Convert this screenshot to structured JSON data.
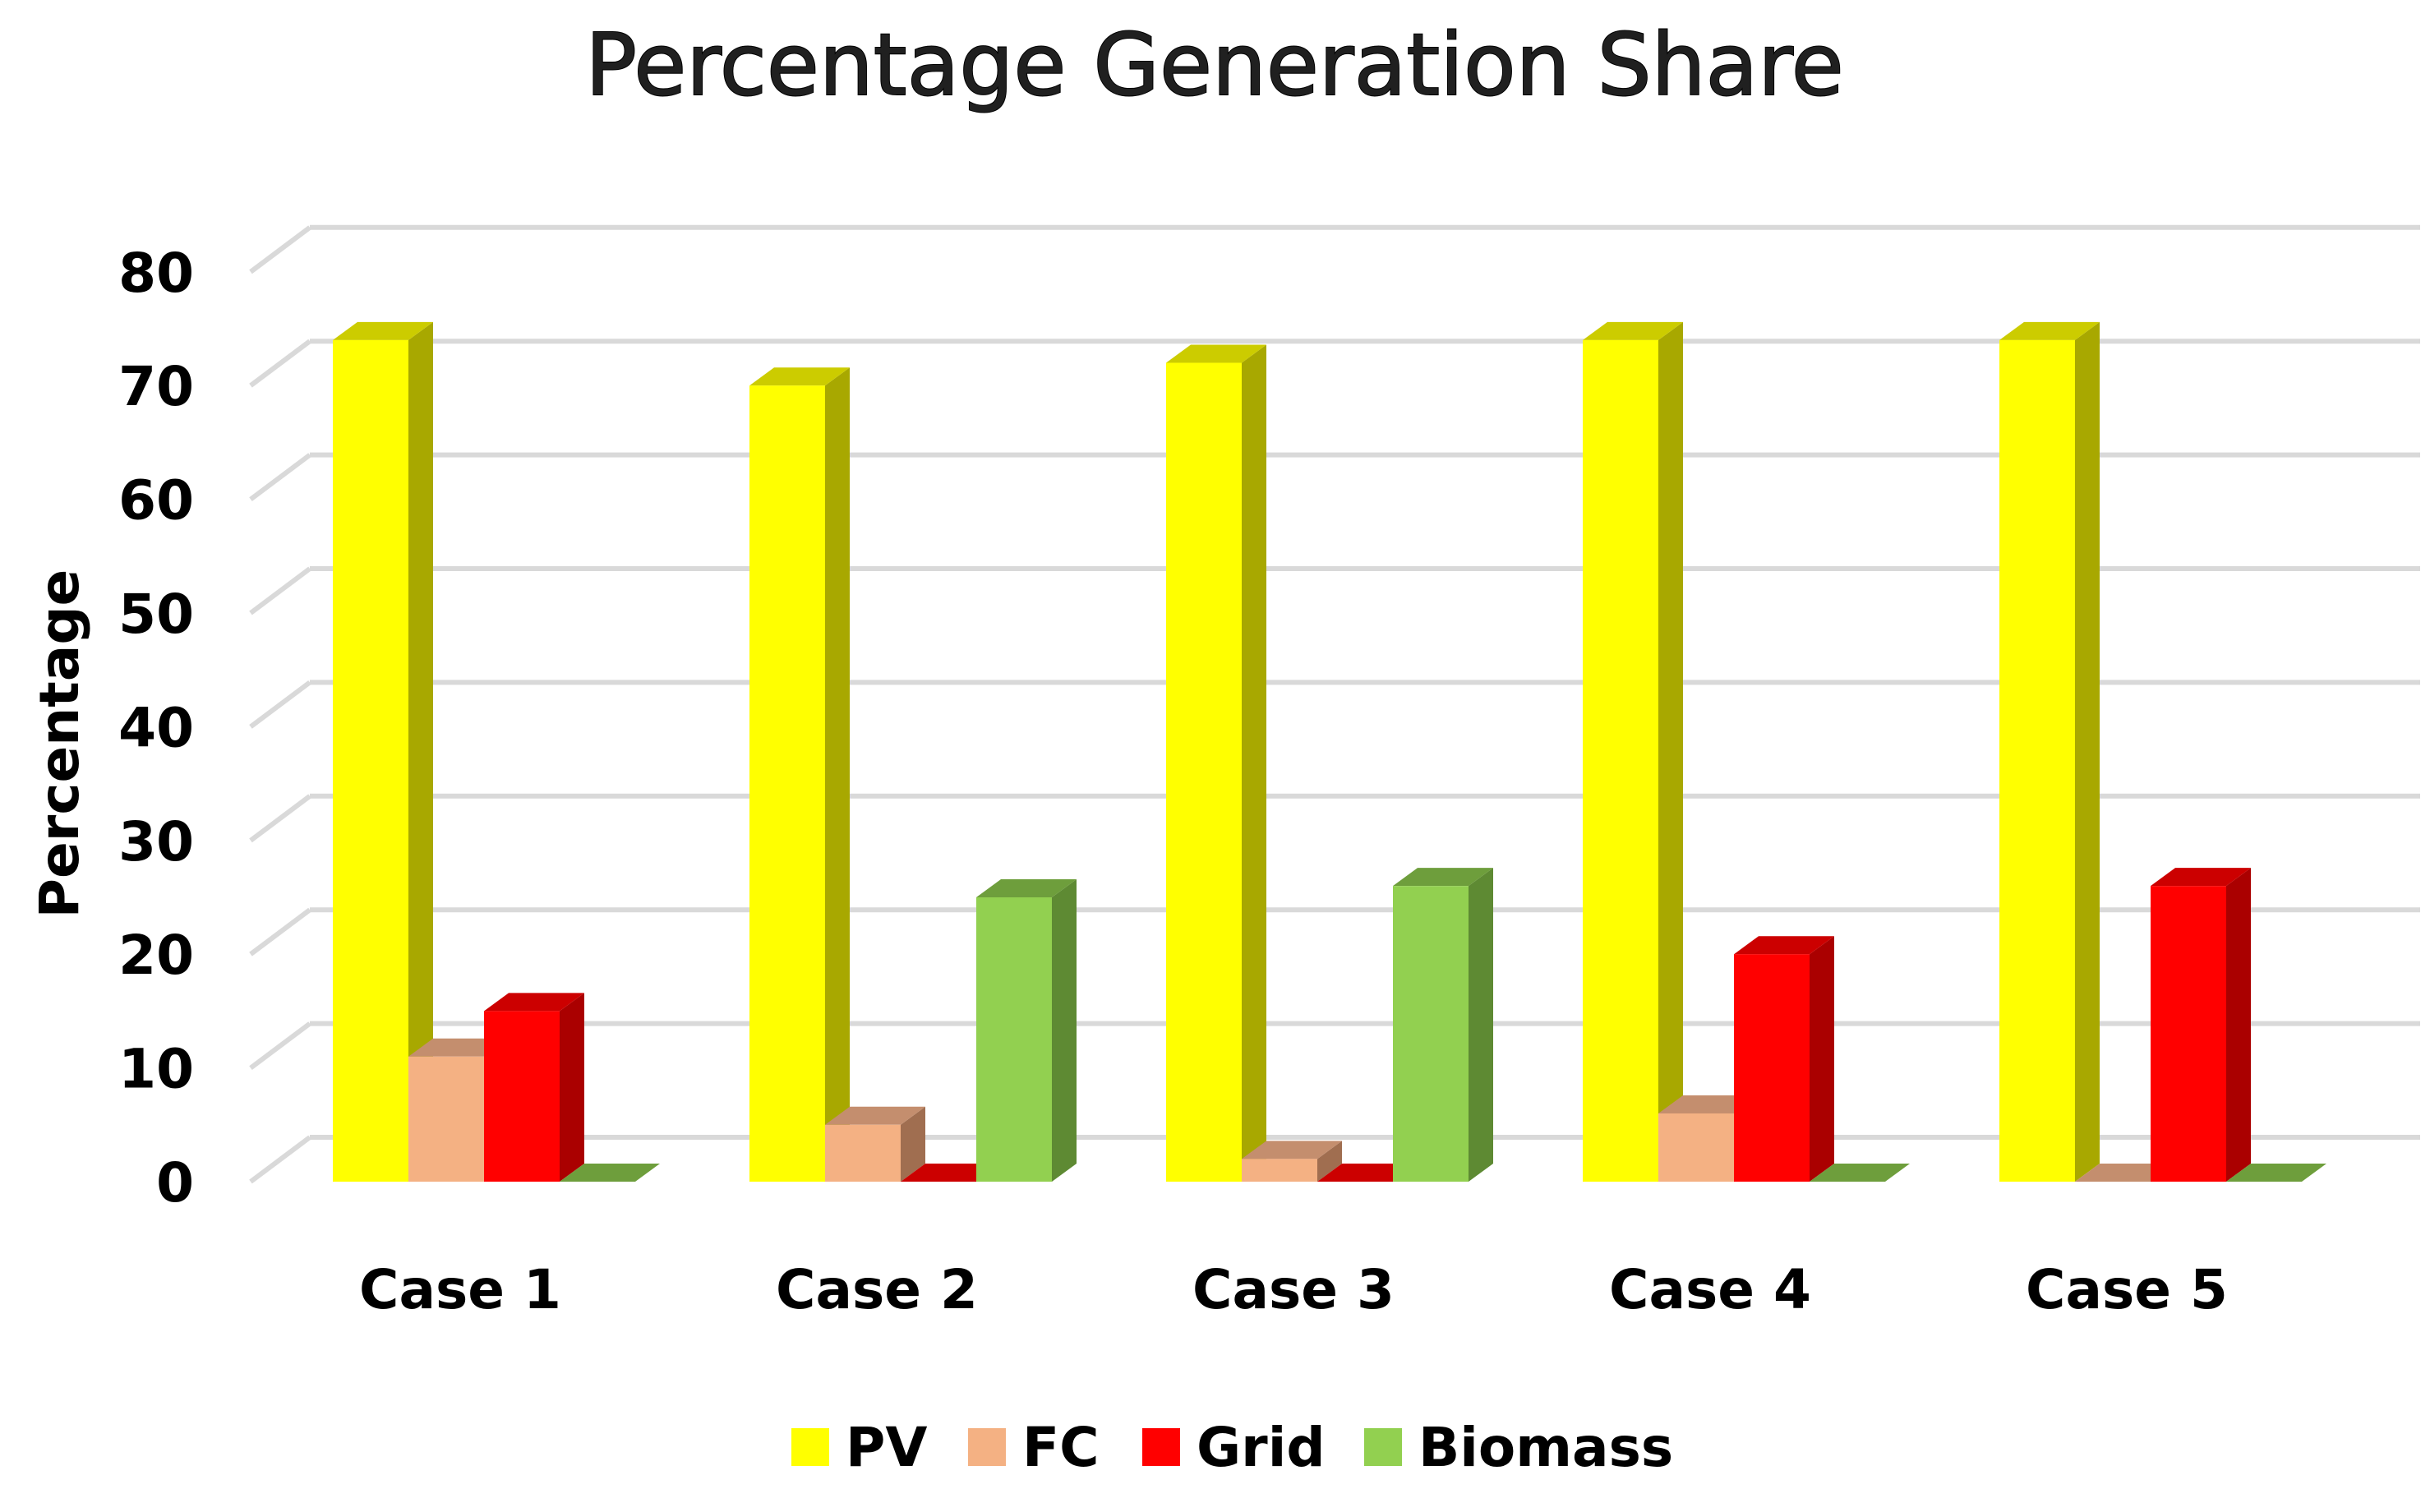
{
  "chart_data": {
    "type": "bar",
    "style": "3d-clustered-column",
    "title": "Percentage Generation Share",
    "xlabel": "",
    "ylabel": "Percentage",
    "ylim": [
      0,
      80
    ],
    "yticks": [
      0,
      10,
      20,
      30,
      40,
      50,
      60,
      70,
      80
    ],
    "grid": true,
    "legend_position": "bottom",
    "categories": [
      "Case 1",
      "Case 2",
      "Case 3",
      "Case 4",
      "Case 5"
    ],
    "series": [
      {
        "name": "PV",
        "values": [
          74,
          70,
          72,
          74,
          74
        ],
        "color": "#FFFF00",
        "side_color": "#A8A800",
        "top_color": "#CCCC00"
      },
      {
        "name": "FC",
        "values": [
          11,
          5,
          2,
          6,
          0
        ],
        "color": "#F4B183",
        "side_color": "#A06E50",
        "top_color": "#C48E6E"
      },
      {
        "name": "Grid",
        "values": [
          15,
          0,
          0,
          20,
          26
        ],
        "color": "#FF0000",
        "side_color": "#AA0000",
        "top_color": "#CC0000"
      },
      {
        "name": "Biomass",
        "values": [
          0,
          25,
          26,
          0,
          0
        ],
        "color": "#92D050",
        "side_color": "#5E8A33",
        "top_color": "#6E9E3C"
      }
    ]
  }
}
